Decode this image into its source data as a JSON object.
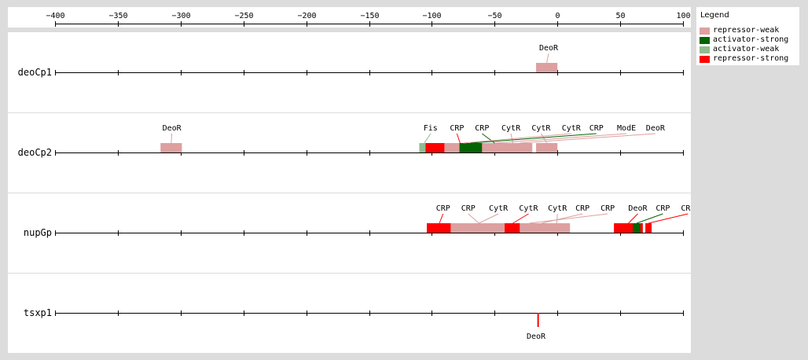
{
  "legend": {
    "title": "Legend",
    "items": [
      {
        "label": "repressor-weak",
        "color": "#dda0a0"
      },
      {
        "label": "activator-strong",
        "color": "#006400"
      },
      {
        "label": "activator-weak",
        "color": "#8fbc8f"
      },
      {
        "label": "repressor-strong",
        "color": "#ff0000"
      }
    ]
  },
  "axis": {
    "min": -400,
    "max": 100,
    "ticks": [
      -400,
      -350,
      -300,
      -250,
      -200,
      -150,
      -100,
      -50,
      0,
      50,
      100
    ],
    "tick_labels": [
      "−400",
      "−350",
      "−300",
      "−250",
      "−200",
      "−150",
      "−100",
      "−50",
      "0",
      "50",
      "100"
    ]
  },
  "colors": {
    "repressor-weak": "#dda0a0",
    "activator-strong": "#006400",
    "activator-weak": "#8fbc8f",
    "repressor-strong": "#ff0000"
  },
  "promoters": [
    {
      "name": "deoCp1",
      "sites": [
        {
          "tf": "DeoR",
          "type": "repressor-weak",
          "start": -17,
          "end": 0,
          "label_pos": -7,
          "label_side": "top"
        }
      ]
    },
    {
      "name": "deoCp2",
      "sites": [
        {
          "tf": "DeoR",
          "type": "repressor-weak",
          "start": -316,
          "end": -299,
          "label_pos": -307,
          "label_side": "top"
        },
        {
          "tf": "Fis",
          "type": "activator-weak",
          "start": -110,
          "end": -102,
          "label_pos": -101,
          "label_side": "top"
        },
        {
          "tf": "CRP",
          "type": "repressor-strong",
          "start": -105,
          "end": -50,
          "label_pos": -80,
          "label_side": "top"
        },
        {
          "tf": "CRP",
          "type": "activator-strong",
          "start": -52,
          "end": -48,
          "label_pos": -60,
          "label_side": "top"
        },
        {
          "tf": "CytR",
          "type": "repressor-weak",
          "start": -48,
          "end": -23,
          "label_pos": -37,
          "label_side": "top"
        },
        {
          "tf": "CytR",
          "type": "repressor-weak",
          "start": -17,
          "end": 0,
          "label_pos": -13,
          "label_side": "top"
        },
        {
          "tf": "CytR",
          "type": "repressor-weak",
          "start": -90,
          "end": -60,
          "label_pos": 11,
          "label_side": "top"
        },
        {
          "tf": "CRP",
          "type": "activator-strong",
          "start": -78,
          "end": -60,
          "label_pos": 31,
          "label_side": "top"
        },
        {
          "tf": "ModE",
          "type": "repressor-weak",
          "start": -60,
          "end": -40,
          "label_pos": 55,
          "label_side": "top"
        },
        {
          "tf": "DeoR",
          "type": "repressor-weak",
          "start": -40,
          "end": -20,
          "label_pos": 78,
          "label_side": "top"
        }
      ]
    },
    {
      "name": "nupGp",
      "sites": [
        {
          "tf": "CRP",
          "type": "repressor-strong",
          "start": -104,
          "end": -84,
          "label_pos": -91,
          "label_side": "top"
        },
        {
          "tf": "CRP",
          "type": "repressor-weak",
          "start": -85,
          "end": -40,
          "label_pos": -71,
          "label_side": "top"
        },
        {
          "tf": "CytR",
          "type": "repressor-weak",
          "start": -70,
          "end": -55,
          "label_pos": -47,
          "label_side": "top"
        },
        {
          "tf": "CytR",
          "type": "repressor-strong",
          "start": -42,
          "end": -29,
          "label_pos": -23,
          "label_side": "top"
        },
        {
          "tf": "CytR",
          "type": "repressor-weak",
          "start": -11,
          "end": 10,
          "label_pos": 0,
          "label_side": "top"
        },
        {
          "tf": "CRP",
          "type": "repressor-weak",
          "start": -20,
          "end": -5,
          "label_pos": 20,
          "label_side": "top"
        },
        {
          "tf": "CRP",
          "type": "repressor-weak",
          "start": -30,
          "end": -15,
          "label_pos": 40,
          "label_side": "top"
        },
        {
          "tf": "DeoR",
          "type": "repressor-strong",
          "start": 45,
          "end": 68,
          "label_pos": 64,
          "label_side": "top"
        },
        {
          "tf": "CRP",
          "type": "activator-strong",
          "start": 60,
          "end": 66,
          "label_pos": 84,
          "label_side": "top"
        },
        {
          "tf": "CRP",
          "type": "repressor-strong",
          "start": 70,
          "end": 75,
          "label_pos": 104,
          "label_side": "top"
        }
      ]
    },
    {
      "name": "tsxp1",
      "sites": [
        {
          "tf": "DeoR",
          "type": "repressor-strong",
          "start": -16,
          "end": -15,
          "label_pos": -17,
          "label_side": "bottom"
        }
      ]
    }
  ]
}
